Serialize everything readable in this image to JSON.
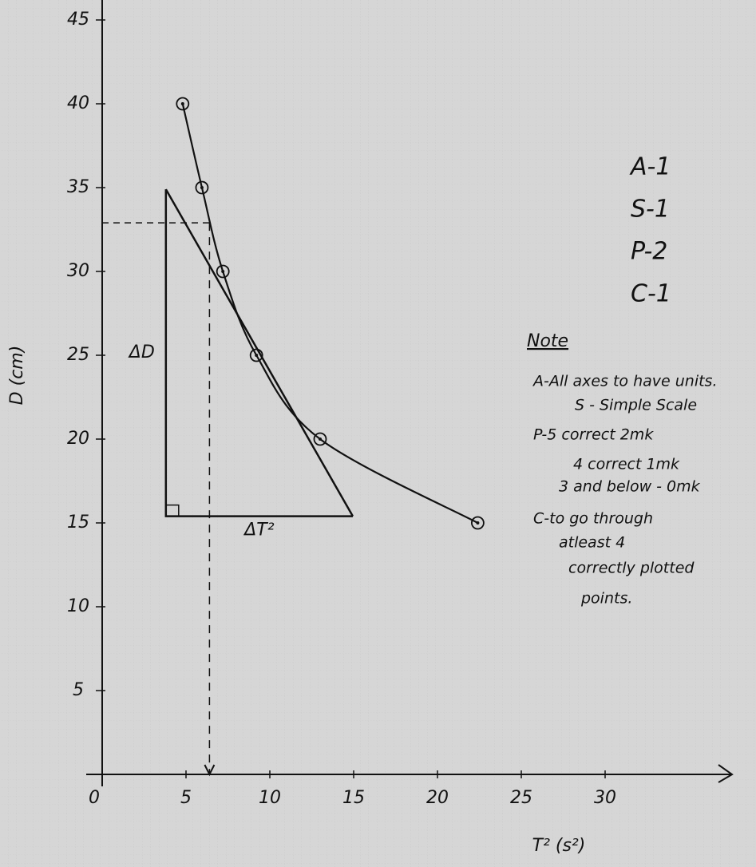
{
  "chart_data": {
    "type": "scatter",
    "xlabel": "T² (s²)",
    "ylabel": "D (cm)",
    "x": [
      4.8,
      5.95,
      7.2,
      9.2,
      13.0,
      22.4
    ],
    "y": [
      40,
      35,
      30,
      25,
      20,
      15
    ],
    "color": "#111111",
    "xlim": [
      0,
      37
    ],
    "ylim": [
      0,
      46
    ],
    "xticks": [
      0,
      5,
      10,
      15,
      20,
      25,
      30
    ],
    "yticks": [
      5,
      10,
      15,
      20,
      25,
      30,
      35,
      40,
      45
    ],
    "grid": true,
    "tangent": {
      "x": [
        3.8,
        14.95
      ],
      "y": [
        34.9,
        15.4
      ],
      "dy_label": "ΔD",
      "dx_label": "ΔT²"
    },
    "reading": {
      "x": 6.4,
      "y": 32.9
    },
    "marking": [
      "A-1",
      "S-1",
      "P-2",
      "C-1"
    ],
    "note_title": "Note",
    "notes": [
      "A-All axes to have units.",
      "S - Simple Scale",
      "P-5 correct 2mk",
      "4 correct 1mk",
      "3 and below - 0mk",
      "C-to go through",
      "atleast 4",
      "correctly plotted",
      "points."
    ]
  }
}
